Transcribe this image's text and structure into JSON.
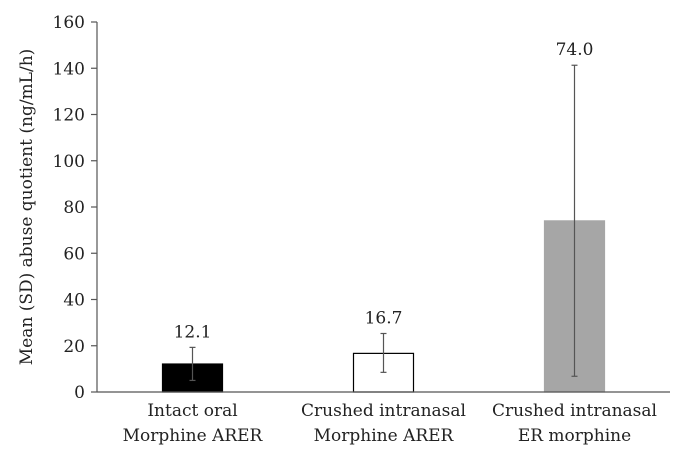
{
  "chart_data": {
    "type": "bar",
    "categories": [
      [
        "Intact oral",
        "Morphine ARER"
      ],
      [
        "Crushed intranasal",
        "Morphine ARER"
      ],
      [
        "Crushed intranasal",
        "ER morphine"
      ]
    ],
    "values": [
      12.1,
      16.7,
      74.0
    ],
    "value_labels": [
      "12.1",
      "16.7",
      "74.0"
    ],
    "error_low": [
      5.0,
      8.5,
      6.8
    ],
    "error_high": [
      19.3,
      25.3,
      141.3
    ],
    "bar_fills": [
      "#000000",
      "#ffffff",
      "#a6a6a6"
    ],
    "bar_strokes": [
      "#000000",
      "#000000",
      "#a6a6a6"
    ],
    "title": "",
    "xlabel": "",
    "ylabel": "Mean (SD) abuse quotient (ng/mL/h)",
    "ylim": [
      0,
      160
    ],
    "yticks": [
      0,
      20,
      40,
      60,
      80,
      100,
      120,
      140,
      160
    ],
    "grid": false
  }
}
